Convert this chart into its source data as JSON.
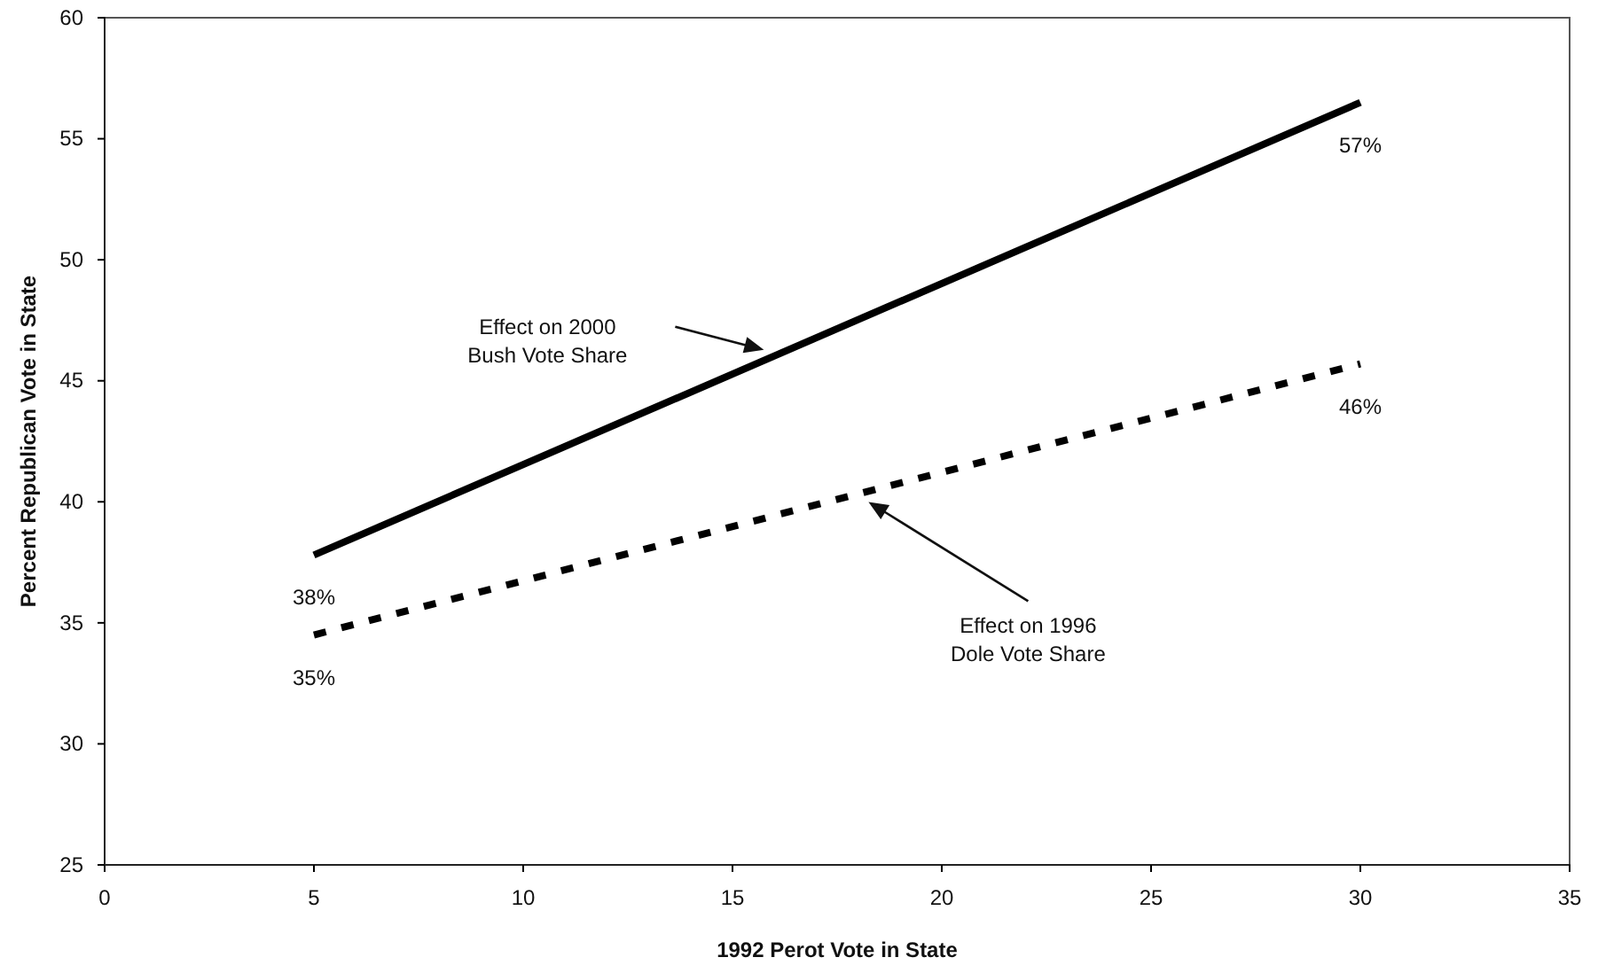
{
  "chart_data": {
    "type": "line",
    "xlabel": "1992 Perot Vote in State",
    "ylabel": "Percent Republican Vote in State",
    "xlim": [
      0,
      35
    ],
    "xticks": [
      0,
      5,
      10,
      15,
      20,
      25,
      30,
      35
    ],
    "ylim": [
      25,
      60
    ],
    "yticks": [
      25,
      30,
      35,
      40,
      45,
      50,
      55,
      60
    ],
    "x": [
      5,
      30
    ],
    "grid": false,
    "marker": "none",
    "series": [
      {
        "color": "#000000",
        "line_style": "solid",
        "values": [
          37.8,
          56.5
        ],
        "value_labels": [
          "38%",
          "57%"
        ]
      },
      {
        "color": "#000000",
        "line_style": "dashed",
        "values": [
          34.5,
          45.7
        ],
        "value_labels": [
          "35%",
          "46%"
        ]
      }
    ],
    "annotations": [
      "Effect on 2000\nBush Vote Share",
      "Effect on 1996\nDole Vote Share"
    ]
  }
}
